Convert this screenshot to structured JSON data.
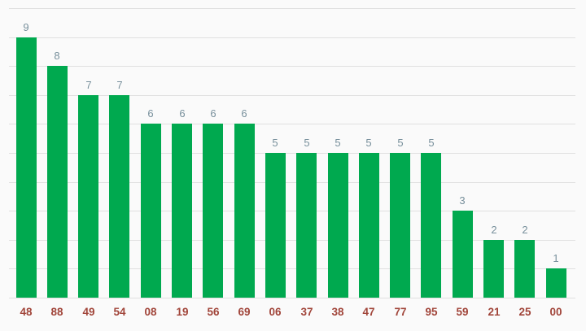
{
  "chart_data": {
    "type": "bar",
    "title": "",
    "xlabel": "",
    "ylabel": "",
    "categories": [
      "48",
      "88",
      "49",
      "54",
      "08",
      "19",
      "56",
      "69",
      "06",
      "37",
      "38",
      "47",
      "77",
      "95",
      "59",
      "21",
      "25",
      "00"
    ],
    "values": [
      9,
      8,
      7,
      7,
      6,
      6,
      6,
      6,
      5,
      5,
      5,
      5,
      5,
      5,
      3,
      2,
      2,
      1
    ],
    "ylim": [
      0,
      10
    ],
    "grid": true,
    "gridline_step": 1,
    "legend_position": "none",
    "colors": {
      "bar": "#00a94f",
      "value_label": "#78909c",
      "x_label": "#a1453a",
      "gridline": "#e0e0e0",
      "background": "#fafafa"
    }
  }
}
